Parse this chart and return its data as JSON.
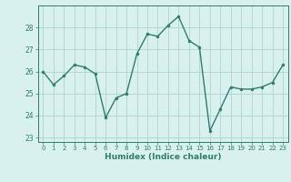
{
  "x": [
    0,
    1,
    2,
    3,
    4,
    5,
    6,
    7,
    8,
    9,
    10,
    11,
    12,
    13,
    14,
    15,
    16,
    17,
    18,
    19,
    20,
    21,
    22,
    23
  ],
  "y": [
    26.0,
    25.4,
    25.8,
    26.3,
    26.2,
    25.9,
    23.9,
    24.8,
    25.0,
    26.8,
    27.7,
    27.6,
    28.1,
    28.5,
    27.4,
    27.1,
    23.3,
    24.3,
    25.3,
    25.2,
    25.2,
    25.3,
    25.5,
    26.3
  ],
  "xlabel": "Humidex (Indice chaleur)",
  "xlim": [
    -0.5,
    23.5
  ],
  "ylim": [
    22.8,
    29.0
  ],
  "yticks": [
    23,
    24,
    25,
    26,
    27,
    28
  ],
  "xticks": [
    0,
    1,
    2,
    3,
    4,
    5,
    6,
    7,
    8,
    9,
    10,
    11,
    12,
    13,
    14,
    15,
    16,
    17,
    18,
    19,
    20,
    21,
    22,
    23
  ],
  "line_color": "#2e7d6e",
  "marker_color": "#2e7d6e",
  "bg_color": "#d8f0ee",
  "grid_color": "#b0d4d0",
  "axis_color": "#2e7d6e",
  "label_color": "#2e7d6e",
  "tick_color": "#2e7d6e"
}
